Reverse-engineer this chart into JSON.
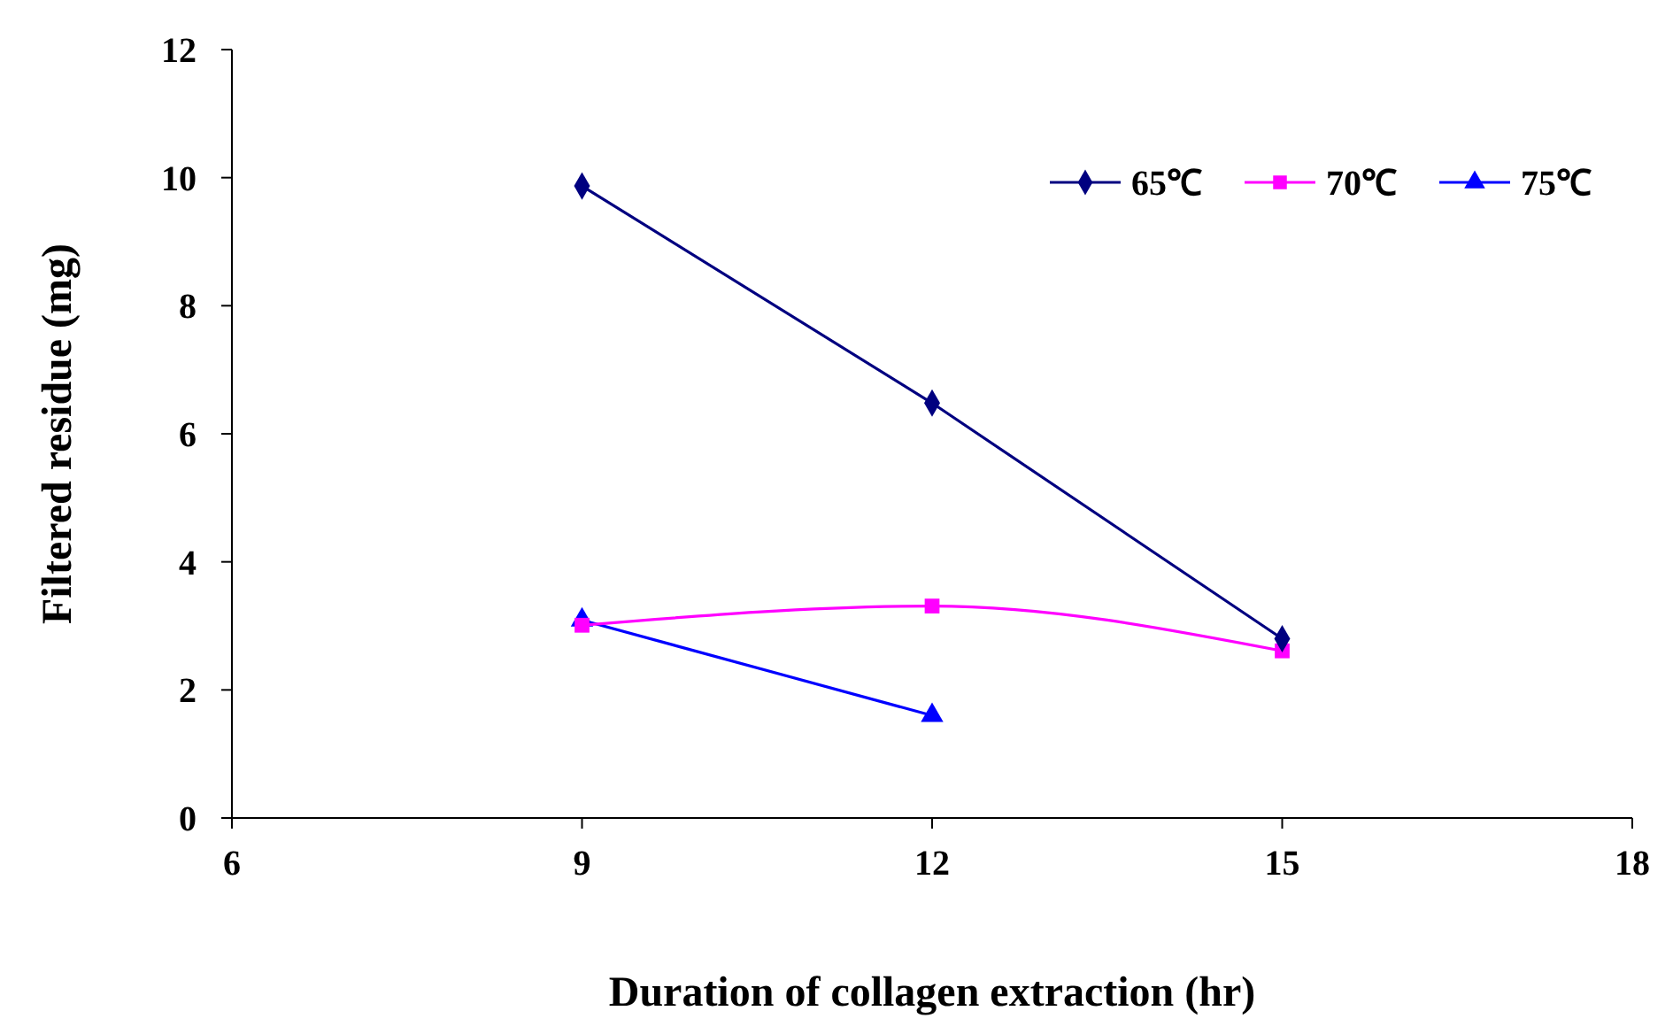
{
  "chart_data": {
    "type": "line",
    "xlabel": "Duration of collagen extraction (hr)",
    "ylabel": "Filtered residue (mg)",
    "x": [
      9,
      12,
      15
    ],
    "xlim": [
      6,
      18
    ],
    "xticks": [
      6,
      9,
      12,
      15,
      18
    ],
    "ylim": [
      0,
      12
    ],
    "yticks": [
      0,
      2,
      4,
      6,
      8,
      10,
      12
    ],
    "grid": false,
    "legend": "top right",
    "line_style": "solid",
    "series": [
      {
        "name": "65℃",
        "color": "#000080",
        "marker": "diamond",
        "values": [
          9.87,
          6.48,
          2.8
        ]
      },
      {
        "name": "70℃",
        "color": "#ff00ff",
        "marker": "square",
        "values": [
          3.01,
          3.31,
          2.61
        ]
      },
      {
        "name": "75℃",
        "color": "#0000ff",
        "marker": "triangle",
        "values": [
          3.09,
          1.6,
          null
        ]
      }
    ]
  }
}
